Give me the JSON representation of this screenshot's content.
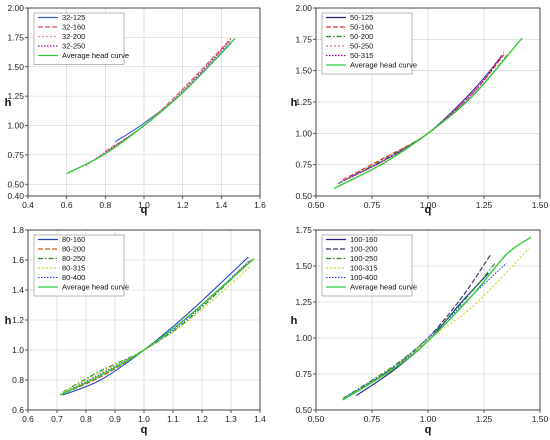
{
  "chart_data": [
    {
      "type": "line",
      "xlabel": "q",
      "ylabel": "h",
      "xlim": [
        0.4,
        1.6
      ],
      "ylim": [
        0.4,
        2.0
      ],
      "xticks": [
        "0.4",
        "0.6",
        "0.8",
        "1.0",
        "1.2",
        "1.4",
        "1.6"
      ],
      "yticks": [
        "0.40",
        "0.50",
        "0.75",
        "1.00",
        "1.25",
        "1.50",
        "1.75",
        "2.00"
      ],
      "legend_position": "top-left",
      "grid": true,
      "series": [
        {
          "name": "32-125",
          "color": "#3a5fcd",
          "dash": "",
          "x": [
            0.85,
            1.0,
            1.2,
            1.45
          ],
          "y": [
            0.86,
            1.02,
            1.28,
            1.7
          ]
        },
        {
          "name": "32-160",
          "color": "#e05050",
          "dash": "5,2",
          "x": [
            0.8,
            1.0,
            1.2,
            1.45
          ],
          "y": [
            0.78,
            1.0,
            1.31,
            1.74
          ]
        },
        {
          "name": "32-200",
          "color": "#e090d0",
          "dash": "2,2",
          "x": [
            0.75,
            1.0,
            1.2,
            1.45
          ],
          "y": [
            0.72,
            1.0,
            1.3,
            1.72
          ]
        },
        {
          "name": "32-250",
          "color": "#a000a0",
          "dash": "1.5,1.5",
          "x": [
            0.7,
            1.0,
            1.2,
            1.45
          ],
          "y": [
            0.66,
            1.0,
            1.29,
            1.73
          ]
        },
        {
          "name": "Average head curve",
          "color": "#33cc33",
          "dash": "",
          "x": [
            0.6,
            0.8,
            1.0,
            1.2,
            1.47
          ],
          "y": [
            0.59,
            0.76,
            1.0,
            1.28,
            1.74
          ]
        }
      ]
    },
    {
      "type": "line",
      "xlabel": "q",
      "ylabel": "h",
      "xlim": [
        0.5,
        1.5
      ],
      "ylim": [
        0.5,
        2.0
      ],
      "xticks": [
        "0.50",
        "0.75",
        "1.00",
        "1.25",
        "1.50"
      ],
      "yticks": [
        "0.50",
        "0.75",
        "1.00",
        "1.25",
        "1.50",
        "1.75",
        "2.00"
      ],
      "legend_position": "top-left",
      "grid": true,
      "series": [
        {
          "name": "50-125",
          "color": "#202080",
          "dash": "",
          "x": [
            0.65,
            0.8,
            1.0,
            1.2,
            1.33
          ],
          "y": [
            0.65,
            0.78,
            1.0,
            1.34,
            1.62
          ]
        },
        {
          "name": "50-160",
          "color": "#e03030",
          "dash": "5,2",
          "x": [
            0.62,
            0.8,
            1.0,
            1.2,
            1.34
          ],
          "y": [
            0.63,
            0.8,
            1.0,
            1.32,
            1.63
          ]
        },
        {
          "name": "50-200",
          "color": "#2a8a2a",
          "dash": "5,2,1.5,2",
          "x": [
            0.6,
            0.8,
            1.0,
            1.2,
            1.36
          ],
          "y": [
            0.6,
            0.79,
            1.0,
            1.3,
            1.64
          ]
        },
        {
          "name": "50-250",
          "color": "#e070c0",
          "dash": "2,2",
          "x": [
            0.62,
            0.8,
            1.0,
            1.2,
            1.34
          ],
          "y": [
            0.62,
            0.78,
            1.0,
            1.33,
            1.65
          ]
        },
        {
          "name": "50-315",
          "color": "#a000a0",
          "dash": "1.5,1.5",
          "x": [
            0.6,
            0.8,
            1.0,
            1.2,
            1.33
          ],
          "y": [
            0.6,
            0.78,
            1.0,
            1.32,
            1.62
          ]
        },
        {
          "name": "Average head curve",
          "color": "#33cc33",
          "dash": "",
          "x": [
            0.58,
            0.8,
            1.0,
            1.2,
            1.42
          ],
          "y": [
            0.56,
            0.76,
            1.0,
            1.3,
            1.76
          ]
        }
      ]
    },
    {
      "type": "line",
      "xlabel": "q",
      "ylabel": "h",
      "xlim": [
        0.6,
        1.4
      ],
      "ylim": [
        0.6,
        1.8
      ],
      "xticks": [
        "0.6",
        "0.7",
        "0.8",
        "0.9",
        "1.0",
        "1.1",
        "1.2",
        "1.3",
        "1.4"
      ],
      "yticks": [
        "0.6",
        "0.8",
        "1.0",
        "1.2",
        "1.4",
        "1.6",
        "1.8"
      ],
      "legend_position": "top-left",
      "grid": true,
      "series": [
        {
          "name": "80-160",
          "color": "#2040c0",
          "dash": "",
          "x": [
            0.72,
            0.85,
            1.0,
            1.15,
            1.36
          ],
          "y": [
            0.7,
            0.8,
            1.0,
            1.24,
            1.62
          ]
        },
        {
          "name": "80-200",
          "color": "#e05020",
          "dash": "5,2",
          "x": [
            0.71,
            0.85,
            1.0,
            1.15,
            1.37
          ],
          "y": [
            0.7,
            0.82,
            1.0,
            1.22,
            1.6
          ]
        },
        {
          "name": "80-250",
          "color": "#2a8a2a",
          "dash": "5,2,1.5,2",
          "x": [
            0.72,
            0.85,
            1.0,
            1.15,
            1.36
          ],
          "y": [
            0.72,
            0.86,
            1.0,
            1.2,
            1.58
          ]
        },
        {
          "name": "80-315",
          "color": "#d0d020",
          "dash": "2,2",
          "x": [
            0.72,
            0.85,
            1.0,
            1.15,
            1.37
          ],
          "y": [
            0.72,
            0.85,
            1.0,
            1.19,
            1.56
          ]
        },
        {
          "name": "80-400",
          "color": "#3050e0",
          "dash": "1.5,1.5",
          "x": [
            0.72,
            0.85,
            1.0,
            1.15,
            1.36
          ],
          "y": [
            0.71,
            0.84,
            1.0,
            1.21,
            1.59
          ]
        },
        {
          "name": "Average head curve",
          "color": "#33cc33",
          "dash": "",
          "x": [
            0.71,
            0.85,
            1.0,
            1.15,
            1.38
          ],
          "y": [
            0.7,
            0.83,
            1.0,
            1.22,
            1.61
          ]
        }
      ]
    },
    {
      "type": "line",
      "xlabel": "q",
      "ylabel": "h",
      "xlim": [
        0.5,
        1.5
      ],
      "ylim": [
        0.5,
        1.75
      ],
      "xticks": [
        "0.50",
        "0.75",
        "1.00",
        "1.25",
        "1.50"
      ],
      "yticks": [
        "0.50",
        "0.75",
        "1.00",
        "1.25",
        "1.50",
        "1.75"
      ],
      "legend_position": "top-left",
      "grid": true,
      "series": [
        {
          "name": "100-160",
          "color": "#202090",
          "dash": "",
          "x": [
            0.68,
            0.85,
            1.0,
            1.15,
            1.27
          ],
          "y": [
            0.6,
            0.78,
            0.98,
            1.25,
            1.45
          ]
        },
        {
          "name": "100-200",
          "color": "#303060",
          "dash": "5,2",
          "x": [
            0.65,
            0.85,
            1.0,
            1.15,
            1.28
          ],
          "y": [
            0.6,
            0.8,
            1.0,
            1.28,
            1.58
          ]
        },
        {
          "name": "100-250",
          "color": "#2a8a2a",
          "dash": "5,2,1.5,2",
          "x": [
            0.62,
            0.85,
            1.0,
            1.15,
            1.3
          ],
          "y": [
            0.58,
            0.81,
            1.0,
            1.24,
            1.52
          ]
        },
        {
          "name": "100-315",
          "color": "#d0d020",
          "dash": "2,2",
          "x": [
            0.65,
            0.85,
            1.0,
            1.2,
            1.45
          ],
          "y": [
            0.6,
            0.8,
            0.99,
            1.22,
            1.62
          ]
        },
        {
          "name": "100-400",
          "color": "#3050e0",
          "dash": "1.5,1.5",
          "x": [
            0.63,
            0.85,
            1.0,
            1.2,
            1.35
          ],
          "y": [
            0.59,
            0.8,
            1.0,
            1.3,
            1.52
          ]
        },
        {
          "name": "Average head curve",
          "color": "#33cc33",
          "dash": "",
          "x": [
            0.62,
            0.85,
            1.0,
            1.2,
            1.35,
            1.46
          ],
          "y": [
            0.57,
            0.79,
            0.98,
            1.3,
            1.58,
            1.7
          ]
        }
      ]
    }
  ]
}
